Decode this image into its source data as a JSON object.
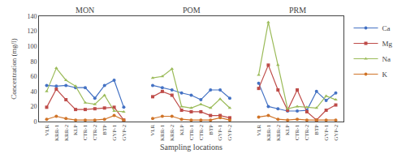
{
  "chart_data": {
    "type": "line",
    "xlabel": "Sampling locations",
    "ylabel": "Concentration (mg/l)",
    "annotations": [
      "MON",
      "POM",
      "PRM"
    ],
    "categories": [
      "VLR",
      "KRR-1",
      "KRR-2",
      "KLP",
      "CTR-1",
      "CTR-2",
      "BTP",
      "GYP-1",
      "GYP-2",
      null,
      null,
      "VLR",
      "KRR-1",
      "KRR-2",
      "KLP",
      "CTR-1",
      "CTR-2",
      "BTP",
      "GYP-1",
      "GYP-2",
      null,
      null,
      "VLR",
      "KRR-1",
      "KRR-2",
      "KLP",
      "CTR-1",
      "CTR-2",
      "BTP",
      "GYP-1",
      "GYP-2"
    ],
    "series": [
      {
        "name": "Ca",
        "color": "#4472C4",
        "marker": "circle",
        "values": [
          48,
          47,
          48,
          45,
          45,
          31,
          48,
          55,
          19,
          null,
          null,
          48,
          45,
          42,
          38,
          35,
          29,
          42,
          42,
          31,
          null,
          null,
          51,
          20,
          17,
          14,
          14,
          15,
          40,
          28,
          38
        ]
      },
      {
        "name": "Mg",
        "color": "#BE4B48",
        "marker": "square",
        "values": [
          19,
          43,
          29,
          16,
          16,
          17,
          18,
          19,
          2,
          null,
          null,
          33,
          40,
          35,
          15,
          13,
          13,
          8,
          8,
          5,
          null,
          null,
          44,
          75,
          42,
          15,
          42,
          13,
          2,
          15,
          22
        ]
      },
      {
        "name": "Na",
        "color": "#9BBB59",
        "marker": "triangle",
        "values": [
          40,
          71,
          55,
          47,
          25,
          23,
          35,
          14,
          13,
          null,
          null,
          58,
          60,
          70,
          20,
          18,
          23,
          18,
          30,
          18,
          null,
          null,
          62,
          132,
          75,
          17,
          20,
          19,
          18,
          34,
          29
        ]
      },
      {
        "name": "K",
        "color": "#D07428",
        "marker": "circle",
        "values": [
          3,
          7,
          4,
          2,
          2,
          2,
          3,
          8,
          2,
          null,
          null,
          4,
          7,
          7,
          3,
          2,
          2,
          2,
          5,
          2,
          null,
          null,
          6,
          8,
          3,
          2,
          3,
          2,
          2,
          2,
          2
        ]
      }
    ],
    "ylim": [
      0,
      140
    ],
    "yticks": [
      0,
      20,
      40,
      60,
      80,
      100,
      120,
      140
    ],
    "grid": false,
    "legend": "upper right"
  }
}
